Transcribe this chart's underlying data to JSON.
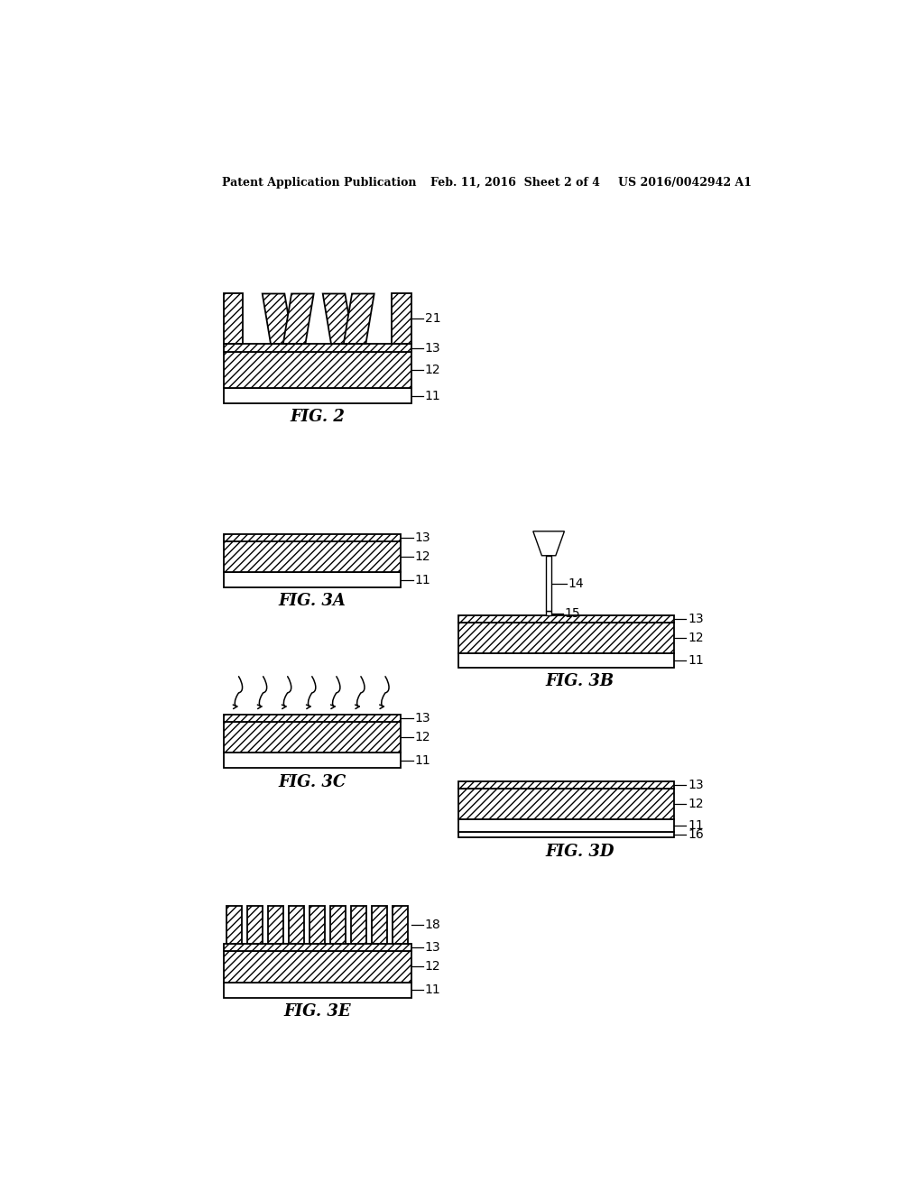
{
  "bg_color": "#ffffff",
  "header_left": "Patent Application Publication",
  "header_mid": "Feb. 11, 2016  Sheet 2 of 4",
  "header_right": "US 2016/0042942 A1",
  "lw": 1.3,
  "hatch": "////",
  "label_fontsize": 10,
  "fig_label_fontsize": 13
}
